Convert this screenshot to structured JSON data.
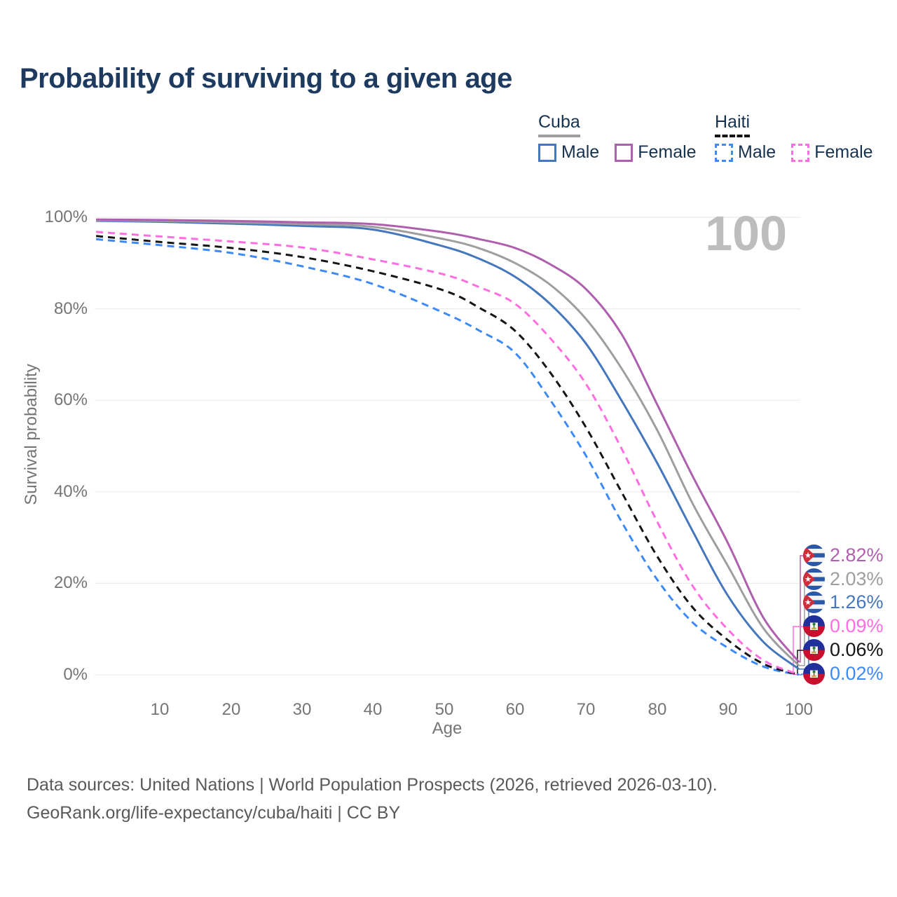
{
  "title": "Probability of surviving to a given age",
  "watermark": "100",
  "legend": {
    "groups": [
      {
        "country": "Cuba",
        "items": [
          {
            "label": "Male"
          },
          {
            "label": "Female"
          }
        ]
      },
      {
        "country": "Haiti",
        "items": [
          {
            "label": "Male"
          },
          {
            "label": "Female"
          }
        ]
      }
    ]
  },
  "footer": {
    "line1": "Data sources: United Nations | World Population Prospects (2026, retrieved 2026-03-10).",
    "line2": "GeoRank.org/life-expectancy/cuba/haiti | CC BY"
  },
  "chart_data": {
    "type": "line",
    "title": "Probability of surviving to a given age",
    "xlabel": "Age",
    "ylabel": "Survival probability",
    "xlim": [
      0,
      100
    ],
    "ylim": [
      0,
      100
    ],
    "grid": "horizontal",
    "legend_position": "top-right",
    "x_ticks": [
      {
        "v": 10,
        "label": "10"
      },
      {
        "v": 20,
        "label": "20"
      },
      {
        "v": 30,
        "label": "30"
      },
      {
        "v": 40,
        "label": "40"
      },
      {
        "v": 50,
        "label": "50"
      },
      {
        "v": 60,
        "label": "60"
      },
      {
        "v": 70,
        "label": "70"
      },
      {
        "v": 80,
        "label": "80"
      },
      {
        "v": 90,
        "label": "90"
      },
      {
        "v": 100,
        "label": "100"
      }
    ],
    "y_ticks": [
      {
        "v": 100,
        "label": "100%"
      },
      {
        "v": 80,
        "label": "80%"
      },
      {
        "v": 60,
        "label": "60%"
      },
      {
        "v": 40,
        "label": "40%"
      },
      {
        "v": 20,
        "label": "20%"
      },
      {
        "v": 0,
        "label": "0%"
      }
    ],
    "hover_age": "100",
    "ages": [
      1,
      10,
      20,
      30,
      40,
      50,
      55,
      60,
      65,
      70,
      75,
      80,
      85,
      90,
      95,
      100
    ],
    "series": [
      {
        "id": "cuba_female",
        "country": "Cuba",
        "sex": "Female",
        "color": "#ae5fae",
        "dashed": false,
        "end_label": "2.82%",
        "values": [
          99.5,
          99.4,
          99.2,
          98.9,
          98.5,
          96.7,
          95.2,
          93.3,
          89.7,
          84.3,
          74.5,
          59.2,
          43.5,
          28.8,
          12.5,
          2.82
        ]
      },
      {
        "id": "cuba_total",
        "country": "Cuba",
        "sex": "Both sexes",
        "color": "#9e9e9e",
        "dashed": false,
        "end_label": "2.03%",
        "values": [
          99.3,
          99.2,
          98.9,
          98.5,
          97.9,
          95.2,
          93.2,
          90.0,
          85.2,
          77.8,
          67.0,
          53.6,
          37.5,
          23.8,
          10.2,
          2.03
        ]
      },
      {
        "id": "cuba_male",
        "country": "Cuba",
        "sex": "Male",
        "color": "#4577bd",
        "dashed": false,
        "end_label": "1.26%",
        "values": [
          99.2,
          99.0,
          98.6,
          98.1,
          97.3,
          93.6,
          90.9,
          87.0,
          81.0,
          72.4,
          60.0,
          46.4,
          31.5,
          17.3,
          7.2,
          1.26
        ]
      },
      {
        "id": "haiti_female",
        "country": "Haiti",
        "sex": "Female",
        "color": "#ff6ee0",
        "dashed": true,
        "end_label": "0.09%",
        "values": [
          96.8,
          95.8,
          94.7,
          93.4,
          90.8,
          87.5,
          84.7,
          81.1,
          73.5,
          63.6,
          49.5,
          33.6,
          19.5,
          9.9,
          3.2,
          0.09
        ]
      },
      {
        "id": "haiti_total",
        "country": "Haiti",
        "sex": "Both sexes",
        "color": "#151515",
        "dashed": true,
        "end_label": "0.06%",
        "values": [
          95.9,
          94.6,
          93.3,
          91.3,
          88.2,
          84.0,
          80.2,
          75.2,
          66.0,
          54.1,
          40.0,
          26.0,
          14.8,
          7.6,
          2.4,
          0.06
        ]
      },
      {
        "id": "haiti_male",
        "country": "Haiti",
        "sex": "Male",
        "color": "#3d8af7",
        "dashed": true,
        "end_label": "0.02%",
        "values": [
          95.2,
          93.9,
          92.2,
          89.3,
          85.4,
          79.1,
          75.2,
          70.4,
          60.0,
          47.9,
          33.5,
          20.9,
          11.5,
          5.9,
          1.8,
          0.02
        ]
      }
    ],
    "colors": {
      "cuba_male": "#4577bd",
      "cuba_female": "#ae5fae",
      "cuba_total": "#9e9e9e",
      "haiti_male": "#3d8af7",
      "haiti_female": "#ff6ee0",
      "haiti_total": "#151515",
      "grid": "#ebebeb",
      "tick_text": "#757575",
      "title_text": "#1e3a5f",
      "watermark": "#bdbdbd"
    }
  }
}
